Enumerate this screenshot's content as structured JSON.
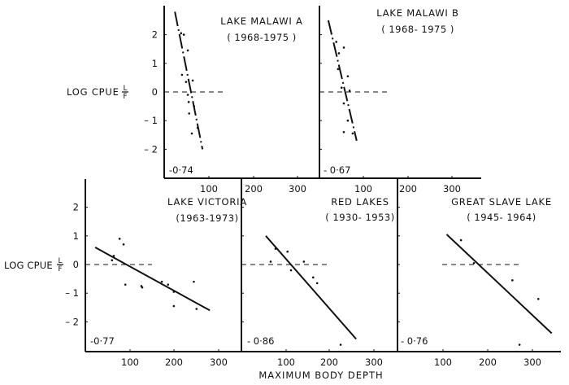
{
  "figure": {
    "ylabel": "LOG CPUE",
    "ylabel_fraction_num": "L",
    "ylabel_fraction_den": "F",
    "xlabel": "MAXIMUM BODY DEPTH",
    "ink_color": "#111111",
    "background": "#ffffff"
  },
  "chart_data": [
    {
      "type": "scatter",
      "title": "LAKE MALAWI A",
      "subtitle": "( 1968-1975 )",
      "annotation": "-0·74",
      "xlabel": "MAXIMUM BODY DEPTH",
      "ylabel": "LOG CPUE L/F",
      "xticks": [
        "100",
        "200",
        "300"
      ],
      "yticks": [
        "2",
        "1",
        "0",
        "-1",
        "-2"
      ],
      "xlim": [
        0,
        350
      ],
      "ylim": [
        -2.9,
        3.1
      ],
      "reference_line": {
        "y": 0,
        "style": "dashed",
        "x_range": [
          0,
          140
        ]
      },
      "regression_line": {
        "x": [
          24,
          86
        ],
        "y": [
          2.8,
          -2.0
        ],
        "style": "dash-dot"
      },
      "points": [
        {
          "x": 38,
          "y": 2.05
        },
        {
          "x": 44,
          "y": 2.0
        },
        {
          "x": 53,
          "y": 1.45
        },
        {
          "x": 40,
          "y": 0.6
        },
        {
          "x": 49,
          "y": 0.35
        },
        {
          "x": 64,
          "y": 0.4
        },
        {
          "x": 53,
          "y": -0.1
        },
        {
          "x": 55,
          "y": -0.35
        },
        {
          "x": 67,
          "y": -0.5
        },
        {
          "x": 56,
          "y": -0.75
        },
        {
          "x": 75,
          "y": -1.25
        },
        {
          "x": 62,
          "y": -1.45
        }
      ]
    },
    {
      "type": "scatter",
      "title": "LAKE MALAWI B",
      "subtitle": "( 1968- 1975 )",
      "annotation": "- 0·67",
      "xticks": [
        "100",
        "200",
        "300"
      ],
      "yticks": [],
      "xlim": [
        0,
        350
      ],
      "ylim": [
        -2.9,
        3.1
      ],
      "reference_line": {
        "y": 0,
        "style": "dashed",
        "x_range": [
          0,
          160
        ]
      },
      "regression_line": {
        "x": [
          20,
          84
        ],
        "y": [
          2.5,
          -1.7
        ],
        "style": "dash-dot"
      },
      "points": [
        {
          "x": 38,
          "y": 1.75
        },
        {
          "x": 55,
          "y": 1.55
        },
        {
          "x": 44,
          "y": 1.35
        },
        {
          "x": 42,
          "y": 0.8
        },
        {
          "x": 64,
          "y": 0.55
        },
        {
          "x": 50,
          "y": 0.15
        },
        {
          "x": 68,
          "y": 0.05
        },
        {
          "x": 55,
          "y": -0.4
        },
        {
          "x": 64,
          "y": -1.0
        },
        {
          "x": 55,
          "y": -1.4
        },
        {
          "x": 75,
          "y": -1.45
        }
      ]
    },
    {
      "type": "scatter",
      "title": "LAKE VICTORIA",
      "subtitle": "(1963-1973)",
      "annotation": "-0·77",
      "xticks": [
        "100",
        "200",
        "300"
      ],
      "yticks": [
        "2",
        "1",
        "0",
        "-1",
        "-2"
      ],
      "xlim": [
        0,
        350
      ],
      "ylim": [
        -2.9,
        3.1
      ],
      "reference_line": {
        "y": 0,
        "style": "dashed",
        "x_range": [
          0,
          150
        ]
      },
      "regression_line": {
        "x": [
          22,
          280
        ],
        "y": [
          0.6,
          -1.6
        ],
        "style": "solid"
      },
      "points": [
        {
          "x": 77,
          "y": 0.9
        },
        {
          "x": 86,
          "y": 0.7
        },
        {
          "x": 60,
          "y": 0.15
        },
        {
          "x": 64,
          "y": 0.3
        },
        {
          "x": 90,
          "y": -0.7
        },
        {
          "x": 126,
          "y": -0.75
        },
        {
          "x": 128,
          "y": -0.8
        },
        {
          "x": 172,
          "y": -0.6
        },
        {
          "x": 186,
          "y": -0.7
        },
        {
          "x": 199,
          "y": -0.95
        },
        {
          "x": 199,
          "y": -1.45
        },
        {
          "x": 244,
          "y": -0.6
        },
        {
          "x": 250,
          "y": -1.55
        }
      ]
    },
    {
      "type": "scatter",
      "title": "RED LAKES",
      "subtitle": "( 1930- 1953)",
      "annotation": "- 0·86",
      "xticks": [
        "100",
        "200",
        "300"
      ],
      "yticks": [],
      "xlim": [
        0,
        350
      ],
      "ylim": [
        -2.9,
        3.1
      ],
      "reference_line": {
        "y": 0,
        "style": "dashed",
        "x_range": [
          0,
          195
        ]
      },
      "regression_line": {
        "x": [
          55,
          259
        ],
        "y": [
          1.0,
          -2.6
        ],
        "style": "solid"
      },
      "points": [
        {
          "x": 77,
          "y": 0.55
        },
        {
          "x": 66,
          "y": 0.1
        },
        {
          "x": 104,
          "y": 0.45
        },
        {
          "x": 112,
          "y": -0.2
        },
        {
          "x": 141,
          "y": 0.1
        },
        {
          "x": 162,
          "y": -0.45
        },
        {
          "x": 171,
          "y": -0.65
        },
        {
          "x": 224,
          "y": -2.8
        }
      ]
    },
    {
      "type": "scatter",
      "title": "GREAT SLAVE LAKE",
      "subtitle": "( 1945- 1964)",
      "annotation": "- 0·76",
      "xticks": [
        "100",
        "200",
        "300"
      ],
      "yticks": [],
      "xlim": [
        0,
        350
      ],
      "ylim": [
        -2.9,
        3.1
      ],
      "reference_line": {
        "y": 0,
        "style": "dashed",
        "x_range": [
          100,
          280
        ]
      },
      "regression_line": {
        "x": [
          110,
          345
        ],
        "y": [
          1.05,
          -2.4
        ],
        "style": "solid"
      },
      "points": [
        {
          "x": 142,
          "y": 0.85
        },
        {
          "x": 171,
          "y": 0.05
        },
        {
          "x": 257,
          "y": -0.55
        },
        {
          "x": 315,
          "y": -1.2
        },
        {
          "x": 273,
          "y": -2.8
        }
      ]
    }
  ]
}
